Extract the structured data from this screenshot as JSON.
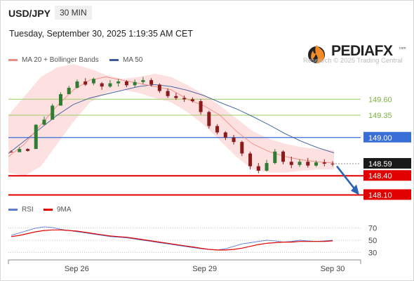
{
  "header": {
    "symbol": "USD/JPY",
    "timeframe": "30 MIN",
    "datetime": "Tuesday, September 30, 2025 1:19:35 AM CET"
  },
  "brand": {
    "name": "PEDIAFX",
    "registered": "com",
    "credit": "Research © 2025 Trading Central",
    "logo_icon": "flame-icon"
  },
  "colors": {
    "candle_up": "#2e7d32",
    "candle_down": "#8b1a1a",
    "bollinger_fill": "#fde0e0",
    "ma20": "#f28b82",
    "ma50": "#3a5a9a",
    "resistance": "#9ccc65",
    "support": "#e00000",
    "pivot": "#3a6fd8",
    "rsi": "#5b7bd5",
    "rsi_ma": "#e00000",
    "arrow": "#2a64b4"
  },
  "legend_top": [
    {
      "label": "MA 20 + Bollinger Bands",
      "color": "#f28b82"
    },
    {
      "label": "MA 50",
      "color": "#3a5a9a"
    }
  ],
  "legend_bottom": [
    {
      "label": "RSI",
      "color": "#5b7bd5"
    },
    {
      "label": "9MA",
      "color": "#e00000"
    }
  ],
  "chart_data": {
    "type": "line",
    "title": "",
    "y_range": [
      148.05,
      150.0
    ],
    "x_ticks": [
      {
        "label": "Sep 26",
        "x": 22
      },
      {
        "label": "Sep 29",
        "x": 65
      },
      {
        "label": "Sep 30",
        "x": 108
      }
    ],
    "price_levels": [
      {
        "label": "149.60",
        "value": 149.6,
        "kind": "resistance"
      },
      {
        "label": "149.35",
        "value": 149.35,
        "kind": "resistance"
      },
      {
        "label": "149.00",
        "value": 149.0,
        "kind": "pivot"
      },
      {
        "label": "148.59",
        "value": 148.59,
        "kind": "current"
      },
      {
        "label": "148.40",
        "value": 148.4,
        "kind": "support"
      },
      {
        "label": "148.10",
        "value": 148.1,
        "kind": "support"
      }
    ],
    "series": [
      {
        "name": "MA 20 + Bollinger Bands",
        "values": [
          148.7,
          148.9,
          149.2,
          149.5,
          149.75,
          149.9,
          149.95,
          149.9,
          149.85,
          149.8,
          149.75,
          149.6,
          149.5,
          149.35,
          149.1,
          148.9,
          148.78,
          148.7,
          148.65,
          148.62,
          148.6
        ]
      },
      {
        "name": "MA 50",
        "values": [
          148.75,
          148.95,
          149.15,
          149.35,
          149.52,
          149.62,
          149.68,
          149.74,
          149.8,
          149.83,
          149.8,
          149.74,
          149.66,
          149.55,
          149.45,
          149.33,
          149.2,
          149.06,
          148.94,
          148.84,
          148.76
        ]
      }
    ],
    "bollinger_upper": [
      149.35,
      149.65,
      149.95,
      150.1,
      150.15,
      150.08,
      149.98,
      149.92,
      149.95,
      150.0,
      149.95,
      149.82,
      149.68,
      149.5,
      149.3,
      149.1,
      148.98,
      148.9,
      148.85,
      148.82,
      148.8
    ],
    "bollinger_lower": [
      148.45,
      148.4,
      148.55,
      148.9,
      149.25,
      149.55,
      149.7,
      149.75,
      149.7,
      149.62,
      149.55,
      149.4,
      149.2,
      148.95,
      148.7,
      148.5,
      148.45,
      148.45,
      148.48,
      148.5,
      148.5
    ],
    "candles_ohlc": [
      [
        148.78,
        148.8,
        148.76,
        148.77
      ],
      [
        148.77,
        148.85,
        148.8,
        148.82
      ],
      [
        148.82,
        148.83,
        148.78,
        148.79
      ],
      [
        148.82,
        149.21,
        149.17,
        149.2
      ],
      [
        149.2,
        149.33,
        149.24,
        149.28
      ],
      [
        149.28,
        149.53,
        149.39,
        149.5
      ],
      [
        149.5,
        149.71,
        149.57,
        149.68
      ],
      [
        149.68,
        149.81,
        149.69,
        149.78
      ],
      [
        149.78,
        149.91,
        149.77,
        149.88
      ],
      [
        149.88,
        149.93,
        149.81,
        149.83
      ],
      [
        149.85,
        149.94,
        149.82,
        149.92
      ],
      [
        149.85,
        149.87,
        149.75,
        149.8
      ],
      [
        149.8,
        149.9,
        149.78,
        149.85
      ],
      [
        149.85,
        149.92,
        149.8,
        149.88
      ],
      [
        149.88,
        149.9,
        149.79,
        149.82
      ],
      [
        149.82,
        149.91,
        149.79,
        149.87
      ],
      [
        149.87,
        149.95,
        149.83,
        149.9
      ],
      [
        149.9,
        149.93,
        149.8,
        149.83
      ],
      [
        149.83,
        149.85,
        149.7,
        149.73
      ],
      [
        149.73,
        149.77,
        149.62,
        149.65
      ],
      [
        149.65,
        149.7,
        149.59,
        149.62
      ],
      [
        149.62,
        149.66,
        149.56,
        149.6
      ],
      [
        149.6,
        149.63,
        149.55,
        149.57
      ],
      [
        149.57,
        149.6,
        149.36,
        149.4
      ],
      [
        149.4,
        149.42,
        149.14,
        149.18
      ],
      [
        149.18,
        149.21,
        149.05,
        149.08
      ],
      [
        149.08,
        149.1,
        148.96,
        149.0
      ],
      [
        149.0,
        149.04,
        148.89,
        148.93
      ],
      [
        148.93,
        148.95,
        148.71,
        148.75
      ],
      [
        148.75,
        148.78,
        148.5,
        148.55
      ],
      [
        148.55,
        148.6,
        148.44,
        148.48
      ],
      [
        148.48,
        148.65,
        148.47,
        148.6
      ],
      [
        148.6,
        148.82,
        148.58,
        148.78
      ],
      [
        148.78,
        148.8,
        148.58,
        148.62
      ],
      [
        148.62,
        148.7,
        148.52,
        148.57
      ],
      [
        148.57,
        148.66,
        148.54,
        148.62
      ],
      [
        148.62,
        148.68,
        148.53,
        148.56
      ],
      [
        148.56,
        148.64,
        148.54,
        148.61
      ],
      [
        148.61,
        148.66,
        148.55,
        148.59
      ],
      [
        148.59,
        148.63,
        148.55,
        148.58
      ]
    ],
    "rsi": {
      "levels": [
        70,
        50,
        30
      ],
      "y_range": [
        20,
        80
      ],
      "values": [
        58,
        62,
        66,
        70,
        72,
        71,
        68,
        66,
        64,
        62,
        60,
        58,
        56,
        55,
        54,
        52,
        50,
        48,
        46,
        44,
        42,
        40,
        38,
        36,
        35,
        34,
        36,
        40,
        44,
        46,
        48,
        50,
        49,
        47,
        48,
        50,
        49,
        48,
        49,
        50
      ],
      "ma9": [
        56,
        58,
        61,
        64,
        66,
        67,
        67,
        66,
        65,
        63,
        61,
        59,
        57,
        56,
        55,
        53,
        51,
        49,
        47,
        45,
        43,
        41,
        39,
        37,
        35,
        34,
        34,
        35,
        37,
        40,
        43,
        45,
        46,
        47,
        47,
        48,
        48,
        48,
        48,
        49
      ]
    }
  }
}
